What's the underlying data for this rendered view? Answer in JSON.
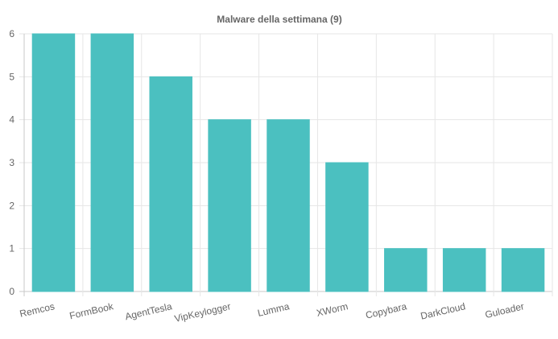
{
  "chart_data": {
    "type": "bar",
    "title": "Malware della settimana (9)",
    "xlabel": "",
    "ylabel": "",
    "categories": [
      "Remcos",
      "FormBook",
      "AgentTesla",
      "VipKeylogger",
      "Lumma",
      "XWorm",
      "Copybara",
      "DarkCloud",
      "Guloader"
    ],
    "values": [
      6,
      6,
      5,
      4,
      4,
      3,
      1,
      1,
      1
    ],
    "ylim": [
      0,
      6
    ],
    "yticks": [
      "0",
      "1",
      "2",
      "3",
      "4",
      "5",
      "6"
    ],
    "grid": true,
    "legend": "none",
    "colors": {
      "bar": "#4bc0c0",
      "bar_border": "#4bc0c0",
      "grid": "#e6e6e6",
      "text": "#666666"
    }
  }
}
